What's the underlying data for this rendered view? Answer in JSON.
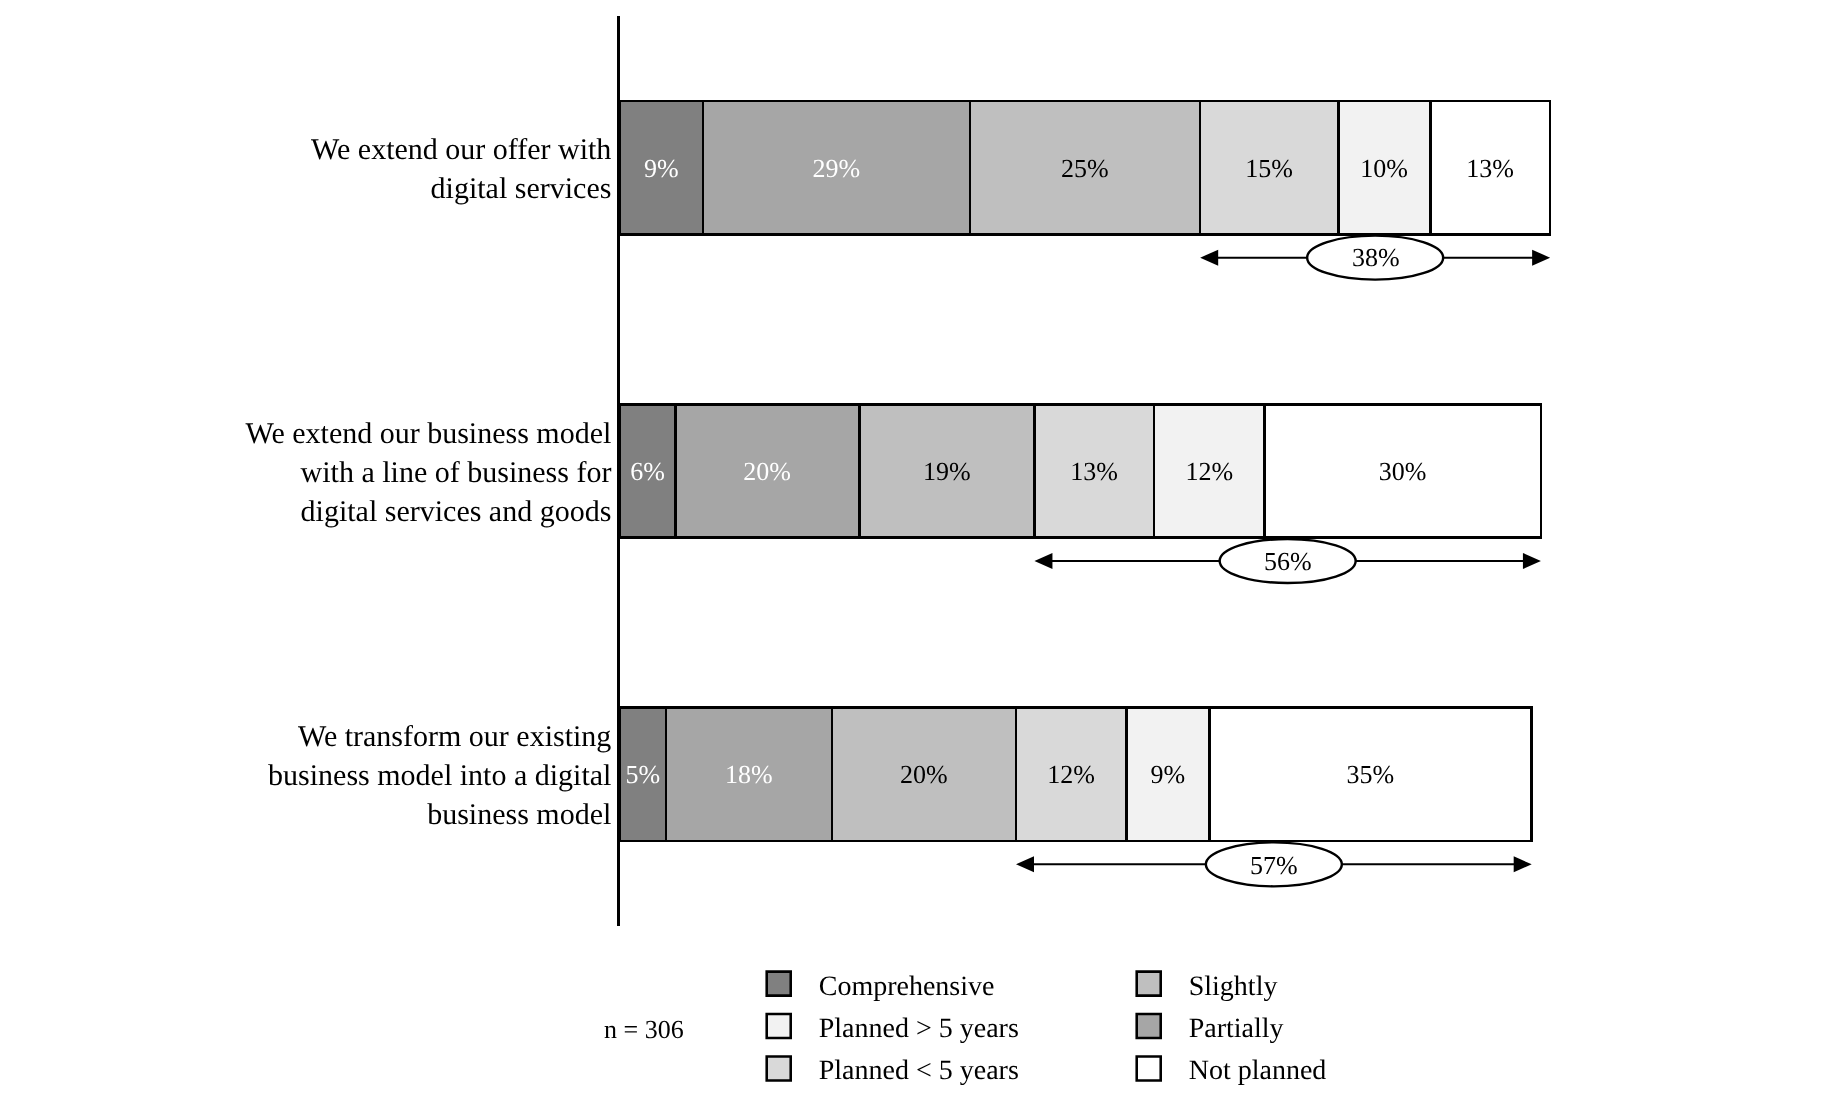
{
  "chart_data": {
    "type": "bar",
    "orientation": "horizontal",
    "stacked": true,
    "legend": "bottom",
    "grid": false,
    "tick_labels": "y",
    "categories": [
      "We extend our offer with digital services",
      "We extend our business model with a line of business for digital services and goods",
      "We transform our existing business model into a digital business model"
    ],
    "series": [
      {
        "name": "Comprehensive",
        "color": "#808080",
        "values": [
          9,
          6,
          5
        ],
        "value_labels": [
          "9%",
          "6%",
          "5%"
        ]
      },
      {
        "name": "Partially",
        "color": "#a6a6a6",
        "values": [
          29,
          20,
          18
        ],
        "value_labels": [
          "29%",
          "20%",
          "18%"
        ]
      },
      {
        "name": "Slightly",
        "color": "#bfbfbf",
        "values": [
          25,
          19,
          20
        ],
        "value_labels": [
          "25%",
          "19%",
          "20%"
        ]
      },
      {
        "name": "Planned < 5 years",
        "color": "#d9d9d9",
        "values": [
          15,
          13,
          12
        ],
        "value_labels": [
          "15%",
          "13%",
          "12%"
        ]
      },
      {
        "name": "Planned > 5 years",
        "color": "#f2f2f2",
        "values": [
          10,
          12,
          9
        ],
        "value_labels": [
          "10%",
          "12%",
          "9%"
        ]
      },
      {
        "name": "Not planned",
        "color": "#ffffff",
        "values": [
          13,
          30,
          35
        ],
        "value_labels": [
          "13%",
          "30%",
          "35%"
        ]
      }
    ],
    "annotations": [
      "38%",
      "56%",
      "57%",
      "n = 306"
    ]
  }
}
